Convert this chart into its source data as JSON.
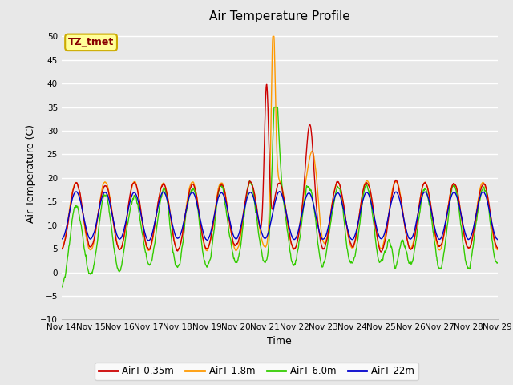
{
  "title": "Air Temperature Profile",
  "xlabel": "Time",
  "ylabel": "Air Temperature (C)",
  "ylim": [
    -10,
    52
  ],
  "yticks": [
    -10,
    -5,
    0,
    5,
    10,
    15,
    20,
    25,
    30,
    35,
    40,
    45,
    50
  ],
  "bg_color": "#e8e8e8",
  "grid_color": "#ffffff",
  "colors": [
    "#cc0000",
    "#ff9900",
    "#33cc00",
    "#0000cc"
  ],
  "legend_labels": [
    "AirT 0.35m",
    "AirT 1.8m",
    "AirT 6.0m",
    "AirT 22m"
  ],
  "annotation_text": "TZ_tmet",
  "annotation_fg": "#880000",
  "annotation_bg": "#ffff99",
  "annotation_edge": "#ccaa00",
  "num_points": 1440,
  "days": 15
}
